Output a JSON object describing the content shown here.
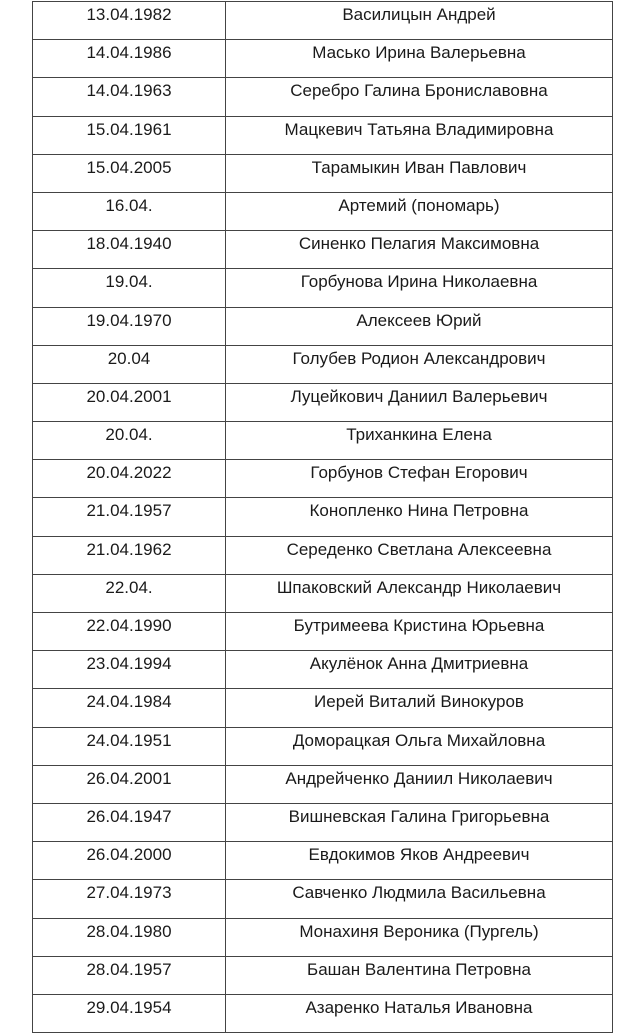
{
  "rows": [
    {
      "date": "13.04.1982",
      "name": "Василицын Андрей"
    },
    {
      "date": "14.04.1986",
      "name": "Масько Ирина Валерьевна"
    },
    {
      "date": "14.04.1963",
      "name": "Серебро Галина Брониславовна"
    },
    {
      "date": "15.04.1961",
      "name": "Мацкевич Татьяна Владимировна"
    },
    {
      "date": "15.04.2005",
      "name": "Тарамыкин Иван Павлович"
    },
    {
      "date": "16.04.",
      "name": "Артемий (пономарь)"
    },
    {
      "date": "18.04.1940",
      "name": "Синенко Пелагия Максимовна"
    },
    {
      "date": "19.04.",
      "name": "Горбунова Ирина Николаевна"
    },
    {
      "date": "19.04.1970",
      "name": "Алексеев Юрий"
    },
    {
      "date": "20.04",
      "name": "Голубев Родион Александрович"
    },
    {
      "date": "20.04.2001",
      "name": "Луцейкович Даниил Валерьевич"
    },
    {
      "date": "20.04.",
      "name": "Триханкина Елена"
    },
    {
      "date": "20.04.2022",
      "name": "Горбунов Стефан Егорович"
    },
    {
      "date": "21.04.1957",
      "name": "Конопленко Нина Петровна"
    },
    {
      "date": "21.04.1962",
      "name": "Середенко Светлана Алексеевна"
    },
    {
      "date": "22.04.",
      "name": "Шпаковский Александр Николаевич"
    },
    {
      "date": "22.04.1990",
      "name": "Бутримеева Кристина Юрьевна"
    },
    {
      "date": "23.04.1994",
      "name": "Акулёнок Анна Дмитриевна"
    },
    {
      "date": "24.04.1984",
      "name": "Иерей Виталий Винокуров"
    },
    {
      "date": "24.04.1951",
      "name": "Доморацкая Ольга Михайловна"
    },
    {
      "date": "26.04.2001",
      "name": "Андрейченко Даниил Николаевич"
    },
    {
      "date": "26.04.1947",
      "name": "Вишневская Галина Григорьевна"
    },
    {
      "date": "26.04.2000",
      "name": "Евдокимов Яков Андреевич"
    },
    {
      "date": "27.04.1973",
      "name": "Савченко Людмила Васильевна"
    },
    {
      "date": "28.04.1980",
      "name": "Монахиня Вероника (Пургель)"
    },
    {
      "date": "28.04.1957",
      "name": "Башан Валентина Петровна"
    },
    {
      "date": "29.04.1954",
      "name": "Азаренко Наталья Ивановна"
    }
  ]
}
